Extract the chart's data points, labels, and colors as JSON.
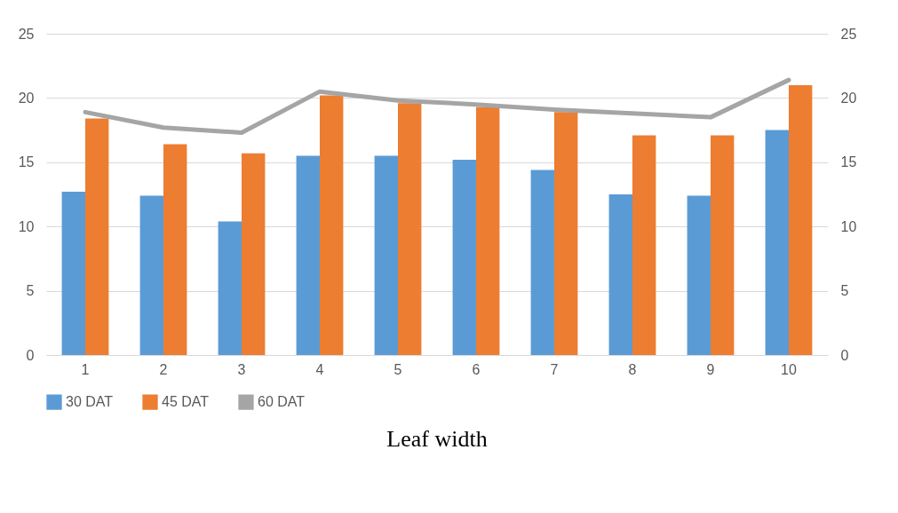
{
  "chart_data": {
    "type": "bar",
    "title": "Leaf width",
    "categories": [
      "1",
      "2",
      "3",
      "4",
      "5",
      "6",
      "7",
      "8",
      "9",
      "10"
    ],
    "series": [
      {
        "name": "30 DAT",
        "type": "bar",
        "color": "#5b9bd5",
        "values": [
          12.7,
          12.4,
          10.4,
          15.5,
          15.5,
          15.2,
          14.4,
          12.5,
          12.4,
          17.5
        ]
      },
      {
        "name": "45 DAT",
        "type": "bar",
        "color": "#ed7d31",
        "values": [
          18.4,
          16.4,
          15.7,
          20.2,
          19.6,
          19.3,
          18.9,
          17.1,
          17.1,
          21.0
        ]
      },
      {
        "name": "60 DAT",
        "type": "line",
        "axis": "y2",
        "color": "#a5a5a5",
        "values": [
          18.9,
          17.7,
          17.3,
          20.5,
          19.8,
          19.5,
          19.1,
          18.8,
          18.5,
          21.4
        ]
      }
    ],
    "ylim": [
      0,
      25
    ],
    "yticks": [
      0,
      5,
      10,
      15,
      20,
      25
    ],
    "y2lim": [
      0,
      25
    ],
    "y2ticks": [
      0,
      5,
      10,
      15,
      20,
      25
    ],
    "grid": "y",
    "legend": "bottom",
    "marker": "none",
    "line_style": "solid"
  }
}
